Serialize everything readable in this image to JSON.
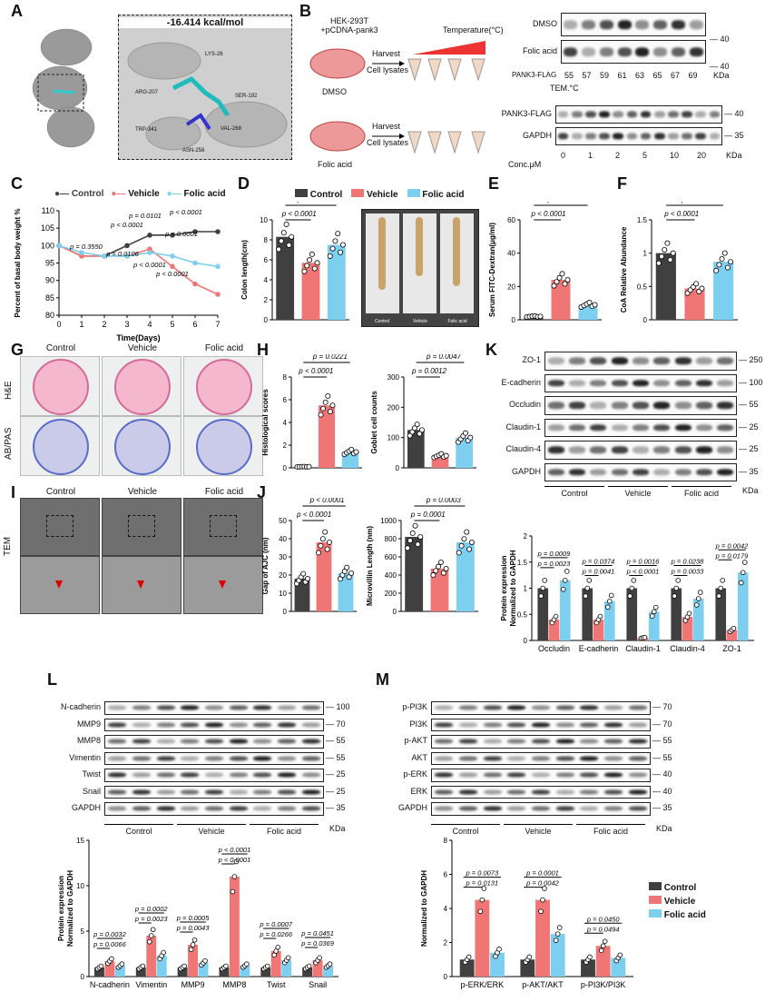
{
  "panelA": {
    "label": "A",
    "energy": "-16.414 kcal/mol",
    "residues": [
      "LYS-26",
      "ARG-207",
      "SER-192",
      "TRP-341",
      "VAL-268",
      "ASN-258"
    ]
  },
  "panelB": {
    "label": "B",
    "cell": "HEK-293T\n+pCDNA-pank3",
    "harvest": "Harvest",
    "lysates": "Cell lysates",
    "temperature": "Temperature(°C)",
    "dmso": "DMSO",
    "folic": "Folic acid",
    "blot1": {
      "rows": [
        "DMSO",
        "Folic acid"
      ],
      "side": "PANK3-FLAG",
      "mw": "40",
      "temps": [
        "55",
        "57",
        "59",
        "61",
        "63",
        "65",
        "67",
        "69"
      ],
      "tem": "TEM.°C",
      "kda": "KDa"
    },
    "blot2": {
      "rows": [
        "PANK3-FLAG",
        "GAPDH"
      ],
      "mw": [
        "40",
        "35"
      ],
      "conc": [
        "0",
        "1",
        "2",
        "5",
        "10",
        "20"
      ],
      "conc_label": "Conc.μM",
      "kda": "KDa"
    }
  },
  "legend": {
    "control": "Control",
    "vehicle": "Vehicle",
    "folic": "Folic acid"
  },
  "colors": {
    "control": "#404040",
    "vehicle": "#f07676",
    "folic": "#7dcff0"
  },
  "panelC": {
    "label": "C",
    "ylabel": "Percent of basal body weight %",
    "xlabel": "Time(Days)",
    "pvals": [
      "p = 0.0101",
      "p < 0.0001",
      "p < 0.0001",
      "p < 0.0001",
      "p = 0.3550",
      "p = 0.0106",
      "p < 0.0001",
      "p < 0.0001"
    ]
  },
  "chart_data": [
    {
      "id": "C",
      "type": "line",
      "x": [
        0,
        1,
        2,
        3,
        4,
        5,
        6,
        7
      ],
      "xlim": [
        0,
        7
      ],
      "ylim": [
        80,
        110
      ],
      "yticks": [
        80,
        85,
        90,
        95,
        100,
        105,
        110
      ],
      "xlabel": "Time(Days)",
      "ylabel": "Percent of basal body weight %",
      "series": [
        {
          "name": "Control",
          "values": [
            100,
            97,
            97,
            100,
            103,
            103,
            104,
            104
          ]
        },
        {
          "name": "Vehicle",
          "values": [
            100,
            97,
            97,
            97,
            99,
            94,
            89,
            86
          ]
        },
        {
          "name": "Folic acid",
          "values": [
            100,
            98,
            97,
            97,
            98,
            97,
            95,
            94
          ]
        }
      ]
    },
    {
      "id": "D",
      "type": "bar",
      "categories": [
        "Control",
        "Vehicle",
        "Folic acid"
      ],
      "values": [
        8.3,
        5.7,
        7.5
      ],
      "ylim": [
        0,
        10
      ],
      "yticks": [
        0,
        2,
        4,
        6,
        8,
        10
      ],
      "ylabel": "Colon length(cm)"
    },
    {
      "id": "E",
      "type": "bar",
      "categories": [
        "Control",
        "Vehicle",
        "Folic acid"
      ],
      "values": [
        2,
        24,
        9
      ],
      "ylim": [
        0,
        60
      ],
      "yticks": [
        0,
        20,
        40,
        60
      ],
      "ylabel": "Serum FITC-Dextran(μg/ml)"
    },
    {
      "id": "F",
      "type": "bar",
      "categories": [
        "Control",
        "Vehicle",
        "Folic acid"
      ],
      "values": [
        1.0,
        0.47,
        0.87
      ],
      "ylim": [
        0,
        1.5
      ],
      "yticks": [
        0,
        0.5,
        1.0,
        1.5
      ],
      "ylabel": "CoA Relative Abundance"
    },
    {
      "id": "H1",
      "type": "bar",
      "categories": [
        "Control",
        "Vehicle",
        "Folic acid"
      ],
      "values": [
        0.1,
        5.5,
        1.4
      ],
      "ylim": [
        0,
        8
      ],
      "yticks": [
        0,
        2,
        4,
        6,
        8
      ],
      "ylabel": "Histological scores"
    },
    {
      "id": "H2",
      "type": "bar",
      "categories": [
        "Control",
        "Vehicle",
        "Folic acid"
      ],
      "values": [
        125,
        40,
        100
      ],
      "ylim": [
        0,
        300
      ],
      "yticks": [
        0,
        100,
        200,
        300
      ],
      "ylabel": "Goblet cell counts"
    },
    {
      "id": "J1",
      "type": "bar",
      "categories": [
        "Control",
        "Vehicle",
        "Folic acid"
      ],
      "values": [
        18,
        38,
        21
      ],
      "ylim": [
        0,
        50
      ],
      "yticks": [
        0,
        10,
        20,
        30,
        40,
        50
      ],
      "ylabel": "Gap of AJC (nm)"
    },
    {
      "id": "J2",
      "type": "bar",
      "categories": [
        "Control",
        "Vehicle",
        "Folic acid"
      ],
      "values": [
        820,
        470,
        760
      ],
      "ylim": [
        0,
        1000
      ],
      "yticks": [
        0,
        200,
        400,
        600,
        800,
        1000
      ],
      "ylabel": "Microvillin Length (nm)"
    },
    {
      "id": "K",
      "type": "bar",
      "categories": [
        "Occludin",
        "E-cadherin",
        "Claudin-1",
        "Claudin-4",
        "ZO-1"
      ],
      "ylim": [
        0,
        2.0
      ],
      "yticks": [
        0,
        0.5,
        1.0,
        1.5,
        2.0
      ],
      "ylabel": "Protein expression\nNormalized to GAPDH",
      "series": [
        {
          "name": "Control",
          "values": [
            1.0,
            1.0,
            1.0,
            1.0,
            1.0
          ]
        },
        {
          "name": "Vehicle",
          "values": [
            0.4,
            0.4,
            0.05,
            0.45,
            0.2
          ]
        },
        {
          "name": "Folic acid",
          "values": [
            1.15,
            0.75,
            0.55,
            0.8,
            1.3
          ]
        }
      ]
    },
    {
      "id": "L",
      "type": "bar",
      "categories": [
        "N-cadherin",
        "Vimentin",
        "MMP9",
        "MMP8",
        "Twist",
        "Snail"
      ],
      "ylim": [
        0,
        15
      ],
      "yticks": [
        0,
        5,
        10,
        15
      ],
      "ylabel": "Protein expression\nNormalized to GAPDH",
      "series": [
        {
          "name": "Control",
          "values": [
            1,
            1,
            1,
            1,
            1,
            1
          ]
        },
        {
          "name": "Vehicle",
          "values": [
            1.7,
            4.5,
            3.5,
            11,
            2.8,
            1.8
          ]
        },
        {
          "name": "Folic acid",
          "values": [
            1.2,
            2.3,
            1.5,
            1.2,
            1.8,
            1.2
          ]
        }
      ]
    },
    {
      "id": "M",
      "type": "bar",
      "categories": [
        "p-ERK/ERK",
        "p-AKT/AKT",
        "p-PI3K/PI3K"
      ],
      "ylim": [
        0,
        8
      ],
      "yticks": [
        0,
        2,
        4,
        6,
        8
      ],
      "ylabel": "Normalized to GAPDH",
      "series": [
        {
          "name": "Control",
          "values": [
            1,
            1,
            1
          ]
        },
        {
          "name": "Vehicle",
          "values": [
            4.5,
            4.5,
            1.8
          ]
        },
        {
          "name": "Folic acid",
          "values": [
            1.4,
            2.5,
            1.1
          ]
        }
      ]
    }
  ],
  "panelD": {
    "label": "D",
    "ylabel": "Colon length(cm)",
    "pvals": [
      "p < 0.0001",
      "p < 0.0001"
    ],
    "photo": [
      "Control",
      "Vehicle",
      "Folic acid"
    ]
  },
  "panelE": {
    "label": "E",
    "ylabel": "Serum FITC-Dextran(μg/ml)",
    "pvals": [
      "p = 0.0007",
      "p < 0.0001"
    ]
  },
  "panelF": {
    "label": "F",
    "ylabel": "CoA Relative Abundance",
    "pvals": [
      "p < 0.0001",
      "p < 0.0001"
    ]
  },
  "panelG": {
    "label": "G",
    "cols": [
      "Control",
      "Vehicle",
      "Folic acid"
    ],
    "rows": [
      "H&E",
      "AB/PAS"
    ]
  },
  "panelH": {
    "label": "H",
    "y1": "Histological scores",
    "y2": "Goblet cell counts",
    "p1": [
      "p = 0.0221",
      "p < 0.0001"
    ],
    "p2": [
      "p = 0.0047",
      "p = 0.0012"
    ]
  },
  "panelI": {
    "label": "I",
    "cols": [
      "Control",
      "Vehicle",
      "Folic acid"
    ],
    "side": "TEM"
  },
  "panelJ": {
    "label": "J",
    "y1": "Gap of AJC (nm)",
    "y2": "Microvillin Length (nm)",
    "p1": [
      "p < 0.0001",
      "p < 0.0001"
    ],
    "p2": [
      "p = 0.0003",
      "p = 0.0001"
    ]
  },
  "panelK": {
    "label": "K",
    "rows": [
      "ZO-1",
      "E-cadherin",
      "Occludin",
      "Claudin-1",
      "Claudin-4",
      "GAPDH"
    ],
    "mw": [
      "250",
      "100",
      "55",
      "25",
      "25",
      "35"
    ],
    "groups": [
      "Control",
      "Vehicle",
      "Folic acid"
    ],
    "kda": "KDa",
    "pvals": [
      "p = 0.0023",
      "p = 0.0009",
      "p = 0.0041",
      "p = 0.0374",
      "p < 0.0001",
      "p = 0.0016",
      "p = 0.0033",
      "p = 0.0238",
      "p = 0.0179",
      "p = 0.0042"
    ]
  },
  "panelL": {
    "label": "L",
    "rows": [
      "N-cadherin",
      "MMP9",
      "MMP8",
      "Vimentin",
      "Twist",
      "Snail",
      "GAPDH"
    ],
    "mw": [
      "100",
      "70",
      "55",
      "55",
      "25",
      "25",
      "35"
    ],
    "groups": [
      "Control",
      "Vehicle",
      "Folic acid"
    ],
    "kda": "KDa",
    "pvals": [
      "p = 0.0066",
      "p = 0.0032",
      "p = 0.0023",
      "p = 0.0002",
      "p = 0.0043",
      "p = 0.0005",
      "p < 0.0001",
      "p < 0.0001",
      "p = 0.0266",
      "p = 0.0007",
      "p = 0.0369",
      "p = 0.0451"
    ]
  },
  "panelM": {
    "label": "M",
    "rows": [
      "p-PI3K",
      "PI3K",
      "p-AKT",
      "AKT",
      "p-ERK",
      "ERK",
      "GAPDH"
    ],
    "mw": [
      "70",
      "70",
      "55",
      "55",
      "40",
      "40",
      "35"
    ],
    "groups": [
      "Control",
      "Vehicle",
      "Folic acid"
    ],
    "kda": "KDa",
    "pvals": [
      "p = 0.0131",
      "p = 0.0073",
      "p = 0.0042",
      "p = 0.0001",
      "p = 0.0494",
      "p = 0.0450"
    ]
  }
}
